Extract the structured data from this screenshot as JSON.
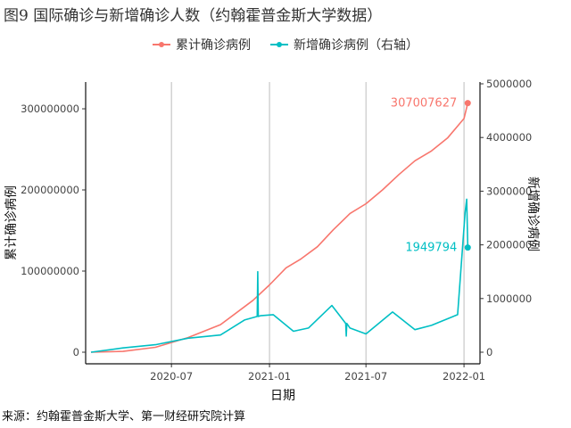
{
  "figure_title": "图9 国际确诊与新增确诊人数（约翰霍普金斯大学数据）",
  "source": "来源：约翰霍普金斯大学、第一财经研究院计算",
  "chart_data": {
    "type": "line",
    "title": "图9 国际确诊与新增确诊人数（约翰霍普金斯大学数据）",
    "xlabel": "日期",
    "ylabel_left": "累计确诊病例",
    "ylabel_right": "新增确诊病例",
    "legend_position": "top",
    "grid": "vertical-major",
    "x_ticks": [
      "2020-07",
      "2021-01",
      "2021-07",
      "2022-01"
    ],
    "y_left_ticks": [
      "0",
      "100000000",
      "200000000",
      "300000000"
    ],
    "y_left_ticks_values": [
      0,
      100000000,
      200000000,
      300000000
    ],
    "y_left_lim": [
      0,
      322000000
    ],
    "y_right_ticks": [
      "0",
      "1000000",
      "2000000",
      "3000000",
      "4000000",
      "5000000"
    ],
    "y_right_ticks_values": [
      0,
      1000000,
      2000000,
      3000000,
      4000000,
      5000000
    ],
    "y_right_lim": [
      0,
      5000000
    ],
    "x_range": [
      "2020-01-22",
      "2022-01-31"
    ],
    "series": [
      {
        "name": "累计确诊病例",
        "axis": "left",
        "color": "#F8766D",
        "end_label": "307007627",
        "end_value": 307007627,
        "x": [
          "2020-02-01",
          "2020-04-01",
          "2020-06-01",
          "2020-08-01",
          "2020-10-01",
          "2020-12-01",
          "2021-01-01",
          "2021-02-01",
          "2021-03-01",
          "2021-04-01",
          "2021-05-01",
          "2021-06-01",
          "2021-07-01",
          "2021-08-01",
          "2021-09-01",
          "2021-10-01",
          "2021-11-01",
          "2021-12-01",
          "2022-01-01",
          "2022-01-08"
        ],
        "values": [
          0,
          1000000,
          6000000,
          18000000,
          34000000,
          64000000,
          83000000,
          104000000,
          115000000,
          130000000,
          151000000,
          171000000,
          183000000,
          200000000,
          219000000,
          236000000,
          248000000,
          264000000,
          288000000,
          307007627
        ]
      },
      {
        "name": "新增确诊病例（右轴）",
        "axis": "right",
        "color": "#00BFC4",
        "end_label": "1949794",
        "end_value": 1949794,
        "x": [
          "2020-02-01",
          "2020-04-01",
          "2020-06-01",
          "2020-08-01",
          "2020-10-01",
          "2020-11-15",
          "2020-12-15",
          "2021-01-08",
          "2021-02-15",
          "2021-03-15",
          "2021-04-28",
          "2021-06-01",
          "2021-07-01",
          "2021-08-20",
          "2021-10-01",
          "2021-11-01",
          "2021-12-20",
          "2022-01-03",
          "2022-01-06",
          "2022-01-08"
        ],
        "values": [
          0,
          80000,
          140000,
          260000,
          320000,
          600000,
          680000,
          700000,
          390000,
          450000,
          870000,
          450000,
          340000,
          750000,
          420000,
          500000,
          700000,
          2600000,
          2850000,
          1949794
        ]
      }
    ],
    "spikes": [
      {
        "series": "新增确诊病例（右轴）",
        "x": "2020-12-10",
        "value": 1500000
      },
      {
        "series": "新增确诊病例（右轴）",
        "x": "2021-05-25",
        "value": 300000
      }
    ]
  }
}
